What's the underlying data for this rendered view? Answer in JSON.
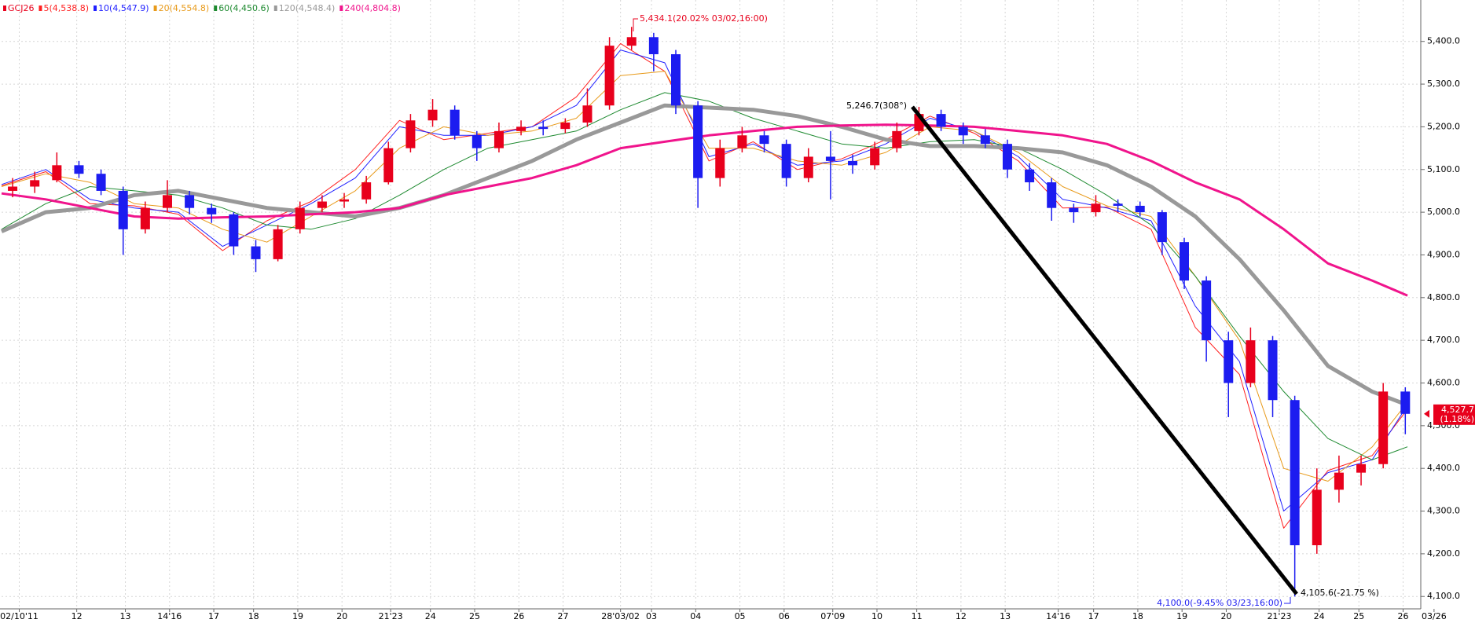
{
  "chart_data": {
    "type": "candlestick",
    "legend": [
      "GCJ26",
      "5(4,538.8)",
      "10(4,547.9)",
      "20(4,554.8)",
      "60(4,450.6)",
      "120(4,548.4)",
      "240(4,804.8)"
    ],
    "symbol_color": "#e8001c",
    "up_color": "#e8001c",
    "down_color": "#1c1cf0",
    "candles": {
      "x": [
        0.25,
        0.75,
        1.25,
        1.75,
        2.25,
        2.75,
        3.25,
        3.75,
        4.25,
        4.75,
        5.25,
        5.75,
        6.25,
        6.75,
        7.25,
        7.75,
        8.25,
        8.75,
        9.25,
        9.75,
        10.25,
        10.75,
        11.25,
        11.75,
        12.25,
        12.75,
        13.25,
        13.75,
        14.25,
        14.75,
        15.25,
        15.75,
        16.25,
        16.75,
        17.25,
        17.75,
        18.25,
        18.75,
        19.25,
        19.75,
        20.25,
        20.75,
        21.25,
        21.75,
        22.25,
        22.75,
        23.25,
        23.75,
        24.25,
        24.75,
        25.25,
        25.75,
        26.25,
        26.75,
        27.25,
        27.75,
        28.25,
        28.75,
        29.25,
        29.75,
        30.25,
        30.75,
        31.25,
        31.75
      ],
      "open": [
        5050,
        5060,
        5075,
        5110,
        5090,
        5050,
        4960,
        5010,
        5040,
        5010,
        4995,
        4920,
        4890,
        4960,
        5010,
        5025,
        5030,
        5070,
        5150,
        5215,
        5240,
        5180,
        5150,
        5190,
        5200,
        5195,
        5210,
        5250,
        5390,
        5410,
        5370,
        5250,
        5080,
        5150,
        5180,
        5160,
        5080,
        5130,
        5120,
        5110,
        5150,
        5190,
        5230,
        5200,
        5180,
        5160,
        5100,
        5070,
        5010,
        5000,
        5020,
        5015,
        5000,
        4930,
        4840,
        4700,
        4600,
        4700,
        4560,
        4220,
        4350,
        4390,
        4410,
        4580
      ],
      "high": [
        5080,
        5095,
        5140,
        5120,
        5100,
        5060,
        5025,
        5075,
        5050,
        5020,
        5000,
        4935,
        4970,
        5025,
        5040,
        5045,
        5085,
        5165,
        5230,
        5265,
        5250,
        5190,
        5210,
        5215,
        5215,
        5220,
        5290,
        5410,
        5434.1,
        5420,
        5380,
        5260,
        5170,
        5200,
        5190,
        5170,
        5150,
        5190,
        5135,
        5165,
        5210,
        5246.7,
        5240,
        5210,
        5195,
        5170,
        5115,
        5080,
        5020,
        5040,
        5030,
        5025,
        5005,
        4940,
        4850,
        4720,
        4730,
        4710,
        4570,
        4400,
        4430,
        4430,
        4600,
        4590
      ],
      "low": [
        5035,
        5045,
        5070,
        5080,
        5040,
        4900,
        4950,
        5000,
        4995,
        4975,
        4900,
        4860,
        4885,
        4950,
        5000,
        5010,
        5020,
        5065,
        5140,
        5200,
        5170,
        5120,
        5140,
        5180,
        5180,
        5185,
        5200,
        5240,
        5380,
        5330,
        5230,
        5010,
        5060,
        5140,
        5140,
        5060,
        5070,
        5030,
        5090,
        5100,
        5140,
        5180,
        5190,
        5160,
        5150,
        5080,
        5050,
        4980,
        4975,
        4990,
        5000,
        4990,
        4900,
        4820,
        4650,
        4520,
        4590,
        4520,
        4100.0,
        4200,
        4320,
        4360,
        4400,
        4480
      ],
      "close": [
        5060,
        5075,
        5110,
        5090,
        5050,
        4960,
        5010,
        5040,
        5010,
        4995,
        4920,
        4890,
        4960,
        5010,
        5025,
        5030,
        5070,
        5150,
        5215,
        5240,
        5180,
        5150,
        5190,
        5200,
        5195,
        5210,
        5250,
        5390,
        5410,
        5370,
        5250,
        5080,
        5150,
        5180,
        5160,
        5080,
        5130,
        5120,
        5110,
        5150,
        5190,
        5230,
        5200,
        5180,
        5160,
        5100,
        5070,
        5010,
        5000,
        5020,
        5015,
        5000,
        4930,
        4840,
        4700,
        4600,
        4700,
        4560,
        4220,
        4350,
        4390,
        4410,
        4580,
        4527.7
      ]
    },
    "ma_x": [
      0,
      1,
      2,
      3,
      4,
      5,
      6,
      7,
      8,
      9,
      10,
      11,
      12,
      13,
      14,
      15,
      16,
      17,
      18,
      19,
      20,
      21,
      22,
      23,
      24,
      25,
      26,
      27,
      28,
      29,
      30,
      31,
      31.8
    ],
    "series": [
      {
        "name": "5(4,538.8)",
        "color": "#ff2020",
        "width": 1,
        "values": [
          5062,
          5095,
          5020,
          5015,
          4995,
          4910,
          4980,
          5025,
          5100,
          5215,
          5170,
          5185,
          5200,
          5270,
          5395,
          5330,
          5120,
          5165,
          5100,
          5125,
          5170,
          5225,
          5185,
          5120,
          5010,
          5012,
          4960,
          4730,
          4620,
          4260,
          4395,
          4430,
          4538.8
        ]
      },
      {
        "name": "10(4,547.9)",
        "color": "#2020ff",
        "width": 1,
        "values": [
          5065,
          5100,
          5030,
          5010,
          5000,
          4920,
          4970,
          5020,
          5080,
          5200,
          5180,
          5180,
          5200,
          5250,
          5380,
          5350,
          5130,
          5160,
          5110,
          5120,
          5160,
          5220,
          5190,
          5130,
          5030,
          5010,
          4980,
          4780,
          4650,
          4300,
          4390,
          4420,
          4547.9
        ]
      },
      {
        "name": "20(4,554.8)",
        "color": "#e89a1a",
        "width": 1,
        "values": [
          5060,
          5090,
          5070,
          5020,
          5010,
          4960,
          4930,
          4990,
          5050,
          5150,
          5200,
          5180,
          5190,
          5220,
          5320,
          5330,
          5150,
          5150,
          5120,
          5110,
          5140,
          5200,
          5190,
          5140,
          5060,
          5015,
          4990,
          4850,
          4700,
          4400,
          4370,
          4450,
          4554.8
        ]
      },
      {
        "name": "60(4,450.6)",
        "color": "#1e8a30",
        "width": 1,
        "values": [
          4960,
          5020,
          5060,
          5050,
          5040,
          5010,
          4970,
          4960,
          4985,
          5040,
          5100,
          5150,
          5170,
          5190,
          5240,
          5280,
          5260,
          5220,
          5190,
          5160,
          5150,
          5165,
          5170,
          5150,
          5100,
          5040,
          4970,
          4850,
          4710,
          4580,
          4470,
          4420,
          4450.6
        ]
      },
      {
        "name": "120(4,548.4)",
        "color": "#999999",
        "width": 5,
        "values": [
          4955,
          5000,
          5010,
          5040,
          5050,
          5030,
          5010,
          5000,
          4990,
          5010,
          5040,
          5080,
          5120,
          5170,
          5210,
          5250,
          5245,
          5240,
          5225,
          5200,
          5170,
          5155,
          5155,
          5150,
          5140,
          5110,
          5060,
          4990,
          4890,
          4770,
          4640,
          4580,
          4548.4
        ]
      },
      {
        "name": "240(4,804.8)",
        "color": "#f0148c",
        "width": 3,
        "values": [
          5044,
          5030,
          5010,
          4990,
          4985,
          4988,
          4990,
          4995,
          5000,
          5010,
          5040,
          5060,
          5080,
          5110,
          5150,
          5165,
          5180,
          5190,
          5200,
          5203,
          5205,
          5203,
          5200,
          5190,
          5180,
          5160,
          5120,
          5070,
          5030,
          4960,
          4880,
          4840,
          4804.8
        ]
      }
    ],
    "xlim": [
      0,
      32.1
    ],
    "xticks": [
      {
        "value": 0.4,
        "label": "02/10'11"
      },
      {
        "value": 1.7,
        "label": "12"
      },
      {
        "value": 2.8,
        "label": "13"
      },
      {
        "value": 3.8,
        "label": "14'16"
      },
      {
        "value": 4.8,
        "label": "17"
      },
      {
        "value": 5.7,
        "label": "18"
      },
      {
        "value": 6.7,
        "label": "19"
      },
      {
        "value": 7.7,
        "label": "20"
      },
      {
        "value": 8.8,
        "label": "21'23"
      },
      {
        "value": 9.7,
        "label": "24"
      },
      {
        "value": 10.7,
        "label": "25"
      },
      {
        "value": 11.7,
        "label": "26"
      },
      {
        "value": 12.7,
        "label": "27"
      },
      {
        "value": 14.0,
        "label": "28'03/02"
      },
      {
        "value": 14.7,
        "label": "03"
      },
      {
        "value": 15.7,
        "label": "04"
      },
      {
        "value": 16.7,
        "label": "05"
      },
      {
        "value": 17.7,
        "label": "06"
      },
      {
        "value": 18.8,
        "label": "07'09"
      },
      {
        "value": 19.8,
        "label": "10"
      },
      {
        "value": 20.7,
        "label": "11"
      },
      {
        "value": 21.7,
        "label": "12"
      },
      {
        "value": 22.7,
        "label": "13"
      },
      {
        "value": 23.9,
        "label": "14'16"
      },
      {
        "value": 24.7,
        "label": "17"
      },
      {
        "value": 25.7,
        "label": "18"
      },
      {
        "value": 26.7,
        "label": "19"
      },
      {
        "value": 27.7,
        "label": "20"
      },
      {
        "value": 28.9,
        "label": "21'23"
      },
      {
        "value": 29.8,
        "label": "24"
      },
      {
        "value": 30.7,
        "label": "25"
      },
      {
        "value": 31.7,
        "label": "26"
      },
      {
        "value": 32.4,
        "label": "03/26"
      }
    ],
    "ylim": [
      4071,
      5497
    ],
    "yticks": [
      {
        "value": 4100,
        "label": "4,100.0"
      },
      {
        "value": 4200,
        "label": "4,200.0"
      },
      {
        "value": 4300,
        "label": "4,300.0"
      },
      {
        "value": 4400,
        "label": "4,400.0"
      },
      {
        "value": 4500,
        "label": "4,500.0"
      },
      {
        "value": 4600,
        "label": "4,600.0"
      },
      {
        "value": 4700,
        "label": "4,700.0"
      },
      {
        "value": 4800,
        "label": "4,800.0"
      },
      {
        "value": 4900,
        "label": "4,900.0"
      },
      {
        "value": 5000,
        "label": "5,000.0"
      },
      {
        "value": 5100,
        "label": "5,100.0"
      },
      {
        "value": 5200,
        "label": "5,200.0"
      },
      {
        "value": 5300,
        "label": "5,300.0"
      },
      {
        "value": 5400,
        "label": "5,400.0"
      }
    ],
    "grid": true,
    "price_label": "4,527.7",
    "change_label": "(1.18%)",
    "annotations": [
      "5,434.1(20.02% 03/02,16:00)",
      "5,246.7(308°)",
      "4,105.6(-21.75 %)",
      "4,100.0(-9.45% 03/23,16:00)"
    ]
  }
}
